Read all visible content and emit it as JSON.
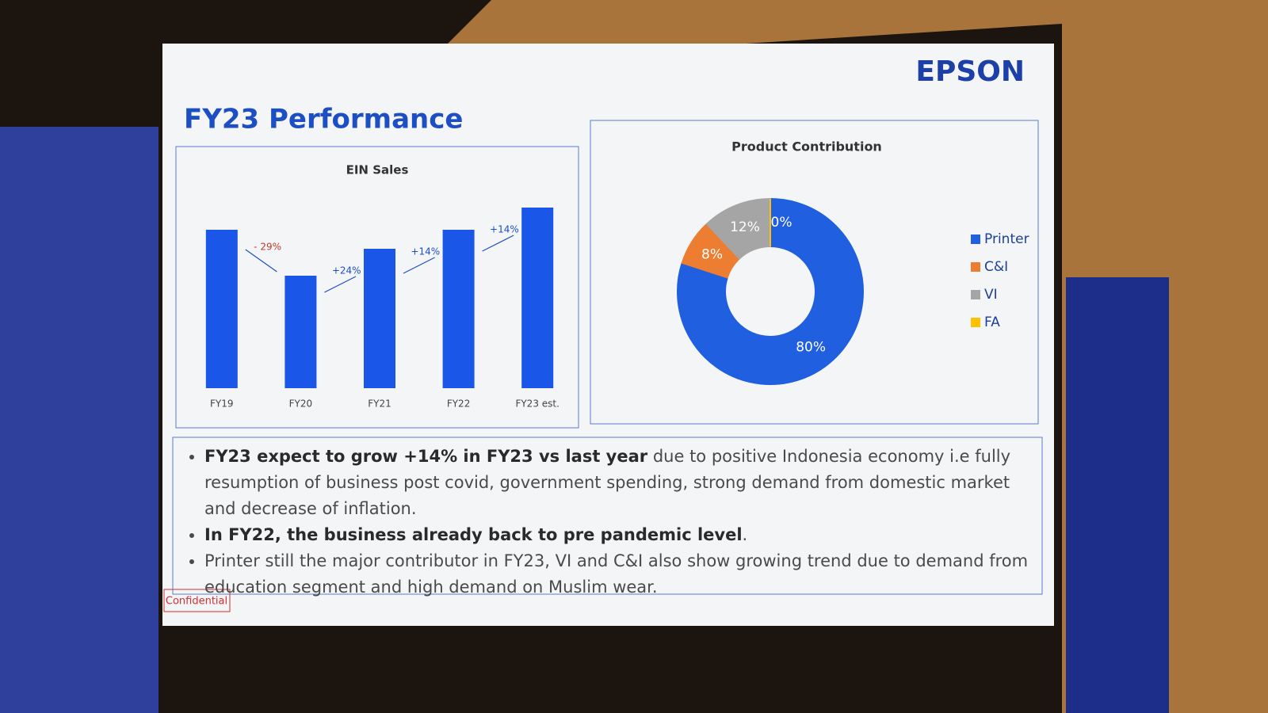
{
  "slide": {
    "title": "FY23 Performance",
    "logo": "EPSON",
    "bullets": [
      {
        "bold": "FY23 expect to grow +14% in FY23  vs last year",
        "text": " due to positive Indonesia economy i.e fully resumption of business post covid, government spending, strong demand from domestic market and decrease of inflation."
      },
      {
        "bold": "In FY22, the business already back to pre pandemic level",
        "text": "."
      },
      {
        "text": "Printer still the major contributor in FY23, VI and C&I also show growing trend due to demand from education segment and high demand on Muslim wear."
      }
    ],
    "confidential": "Confidential"
  },
  "chart_data": [
    {
      "type": "bar",
      "title": "EIN Sales",
      "categories": [
        "FY19",
        "FY20",
        "FY21",
        "FY22",
        "FY23 est."
      ],
      "values": [
        100,
        71,
        88,
        100,
        114
      ],
      "color": "#1a56e8",
      "ylim": [
        0,
        120
      ],
      "annotations": [
        "- 29%",
        "+24%",
        "+14%",
        "+14%"
      ]
    },
    {
      "type": "pie",
      "title": "Product Contribution",
      "categories": [
        "Printer",
        "C&I",
        "VI",
        "FA"
      ],
      "values": [
        80,
        8,
        12,
        0
      ],
      "value_labels": [
        "80%",
        "8%",
        "12%",
        "0%"
      ],
      "colors": [
        "#1f5fe0",
        "#ed7d31",
        "#a5a5a5",
        "#ffc000"
      ],
      "donut": true,
      "legend": "right"
    }
  ]
}
